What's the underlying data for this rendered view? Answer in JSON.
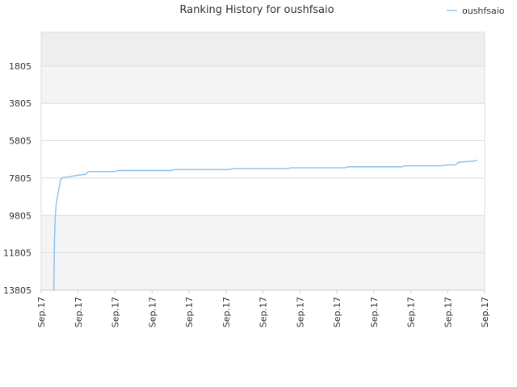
{
  "chart_data": {
    "type": "line",
    "title": "Ranking History for oushfsaio",
    "xlabel": "",
    "ylabel": "",
    "y_reversed": true,
    "ylim": [
      13805,
      0
    ],
    "y_ticks": [
      1805,
      3805,
      5805,
      7805,
      9805,
      11805,
      13805
    ],
    "x_tick_labels": [
      "Sep.17",
      "Sep.17",
      "Sep.17",
      "Sep.17",
      "Sep.17",
      "Sep.17",
      "Sep.17",
      "Sep.17",
      "Sep.17",
      "Sep.17",
      "Sep.17",
      "Sep.17",
      "Sep.17"
    ],
    "xlim": [
      0,
      12
    ],
    "grid": true,
    "legend_position": "top-right",
    "colors": {
      "line": "#90c4f0",
      "band_dark": "#eeeeee",
      "band_light": "#f4f4f4",
      "grid": "#dddddd"
    },
    "series": [
      {
        "name": "oushfsaio",
        "x": [
          0.33,
          0.34,
          0.36,
          0.38,
          0.4,
          0.44,
          0.47,
          0.52,
          0.58,
          0.7,
          0.85,
          1.0,
          1.2,
          1.28,
          1.6,
          2.0,
          2.06,
          2.8,
          3.5,
          3.6,
          4.5,
          5.1,
          5.2,
          6.0,
          6.66,
          6.75,
          7.5,
          8.2,
          8.3,
          9.5,
          9.75,
          9.85,
          10.5,
          10.8,
          11.0,
          11.2,
          11.3,
          11.7,
          11.8
        ],
        "y": [
          13805,
          13805,
          11000,
          9900,
          9300,
          8800,
          8500,
          7900,
          7780,
          7750,
          7700,
          7650,
          7600,
          7450,
          7450,
          7450,
          7400,
          7400,
          7400,
          7350,
          7350,
          7350,
          7300,
          7300,
          7300,
          7250,
          7250,
          7250,
          7200,
          7200,
          7200,
          7150,
          7150,
          7150,
          7100,
          7100,
          6950,
          6900,
          6850
        ]
      }
    ]
  }
}
